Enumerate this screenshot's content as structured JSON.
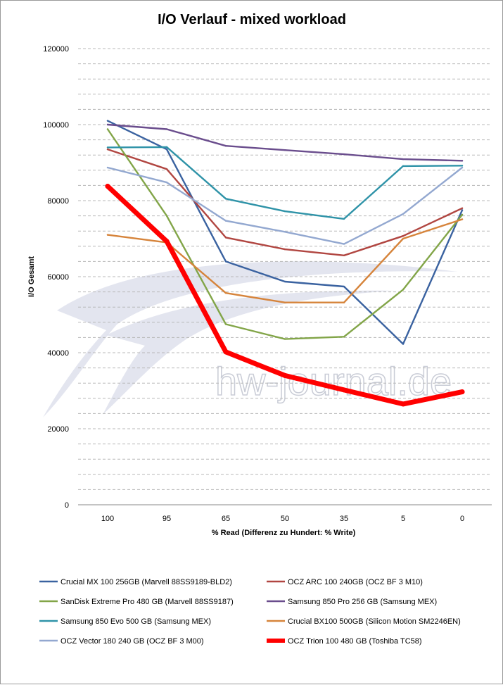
{
  "chart_data": {
    "type": "line",
    "title": "I/O Verlauf - mixed workload",
    "xlabel": "% Read (Differenz zu Hundert: % Write)",
    "ylabel": "I/O Gesamt",
    "categories": [
      "100",
      "95",
      "65",
      "50",
      "35",
      "5",
      "0"
    ],
    "ylim": [
      0,
      120000
    ],
    "yticks": [
      0,
      20000,
      40000,
      60000,
      80000,
      100000,
      120000
    ],
    "grid": "horizontal dashed",
    "legend_position": "bottom",
    "watermark": "hw-journal.de",
    "series": [
      {
        "name": "Crucial MX 100 256GB (Marvell 88SS9189-BLD2)",
        "color": "#3a62a0",
        "values": [
          101000,
          93500,
          64000,
          58700,
          57400,
          42300,
          77500
        ]
      },
      {
        "name": "OCZ ARC 100 240GB (OCZ BF 3 M10)",
        "color": "#b14641",
        "values": [
          93500,
          88300,
          70300,
          67200,
          65600,
          70700,
          78000
        ]
      },
      {
        "name": "SanDisk Extreme Pro 480 GB (Marvell 88SS9187)",
        "color": "#82a548",
        "values": [
          98800,
          76000,
          47500,
          43600,
          44200,
          56600,
          76300
        ]
      },
      {
        "name": "Samsung 850 Pro 256 GB (Samsung MEX)",
        "color": "#6a4d8d",
        "values": [
          100000,
          98800,
          94400,
          93300,
          92200,
          90900,
          90500
        ]
      },
      {
        "name": "Samsung 850 Evo 500 GB (Samsung MEX)",
        "color": "#2f93a8",
        "values": [
          94000,
          94100,
          80500,
          77200,
          75200,
          89100,
          89200
        ]
      },
      {
        "name": "Crucial BX100 500GB (Silicon Motion SM2246EN)",
        "color": "#d6843b",
        "values": [
          71000,
          69000,
          55700,
          53200,
          53200,
          70000,
          75100
        ]
      },
      {
        "name": "OCZ Vector 180 240 GB (OCZ BF 3 M00)",
        "color": "#93a8d0",
        "values": [
          88700,
          84800,
          74700,
          71800,
          68600,
          76500,
          88700
        ]
      },
      {
        "name": "OCZ Trion 100 480 GB (Toshiba TC58)",
        "color": "#ff0000",
        "values": [
          83800,
          69300,
          40200,
          34000,
          30200,
          26500,
          29700
        ]
      }
    ]
  }
}
